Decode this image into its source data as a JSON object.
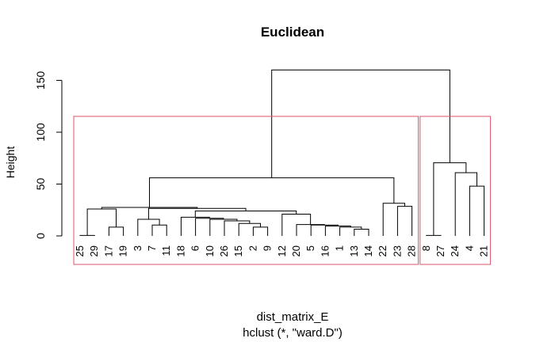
{
  "chart_data": {
    "type": "dendrogram",
    "title": "Euclidean",
    "ylabel": "Height",
    "xlabel": "dist_matrix_E",
    "sub": "hclust (*, \"ward.D\")",
    "ylim": [
      0,
      165
    ],
    "yticks": [
      0,
      50,
      100,
      150
    ],
    "leaf_order": [
      "25",
      "29",
      "17",
      "19",
      "3",
      "7",
      "11",
      "18",
      "6",
      "10",
      "26",
      "15",
      "2",
      "9",
      "12",
      "20",
      "5",
      "16",
      "1",
      "13",
      "14",
      "22",
      "23",
      "28",
      "8",
      "27",
      "24",
      "4",
      "21"
    ],
    "merges": [
      {
        "id": "a",
        "left": "25",
        "right": "29",
        "height": 0.5
      },
      {
        "id": "b",
        "left": "17",
        "right": "19",
        "height": 8.5
      },
      {
        "id": "c",
        "left": "a",
        "right": "b",
        "height": 26
      },
      {
        "id": "d",
        "left": "7",
        "right": "11",
        "height": 10.5
      },
      {
        "id": "e",
        "left": "3",
        "right": "d",
        "height": 16
      },
      {
        "id": "f",
        "left": "2",
        "right": "9",
        "height": 8.5
      },
      {
        "id": "g",
        "left": "15",
        "right": "f",
        "height": 12
      },
      {
        "id": "h",
        "left": "26",
        "right": "g",
        "height": 14.5
      },
      {
        "id": "i",
        "left": "10",
        "right": "h",
        "height": 16
      },
      {
        "id": "j",
        "left": "6",
        "right": "i",
        "height": 17
      },
      {
        "id": "k",
        "left": "18",
        "right": "j",
        "height": 18
      },
      {
        "id": "l",
        "left": "13",
        "right": "14",
        "height": 6.5
      },
      {
        "id": "m",
        "left": "1",
        "right": "l",
        "height": 8.5
      },
      {
        "id": "n",
        "left": "16",
        "right": "m",
        "height": 9.5
      },
      {
        "id": "o",
        "left": "5",
        "right": "n",
        "height": 10.5
      },
      {
        "id": "p",
        "left": "20",
        "right": "o",
        "height": 11
      },
      {
        "id": "q",
        "left": "12",
        "right": "p",
        "height": 21
      },
      {
        "id": "r",
        "left": "k",
        "right": "q",
        "height": 24
      },
      {
        "id": "s",
        "left": "e",
        "right": "r",
        "height": 26.5
      },
      {
        "id": "t",
        "left": "c",
        "right": "s",
        "height": 27.5
      },
      {
        "id": "u",
        "left": "23",
        "right": "28",
        "height": 28.5
      },
      {
        "id": "v",
        "left": "22",
        "right": "u",
        "height": 31.5
      },
      {
        "id": "w",
        "left": "t",
        "right": "v",
        "height": 56
      },
      {
        "id": "x",
        "left": "8",
        "right": "27",
        "height": 0.5
      },
      {
        "id": "y",
        "left": "4",
        "right": "21",
        "height": 48
      },
      {
        "id": "z",
        "left": "24",
        "right": "y",
        "height": 61
      },
      {
        "id": "aa",
        "left": "x",
        "right": "z",
        "height": 70.5
      },
      {
        "id": "root",
        "left": "w",
        "right": "aa",
        "height": 160
      }
    ],
    "cluster_boxes": [
      {
        "first": "25",
        "last": "28",
        "color": "#DF536B"
      },
      {
        "first": "8",
        "last": "21",
        "color": "#DF536B"
      }
    ]
  }
}
